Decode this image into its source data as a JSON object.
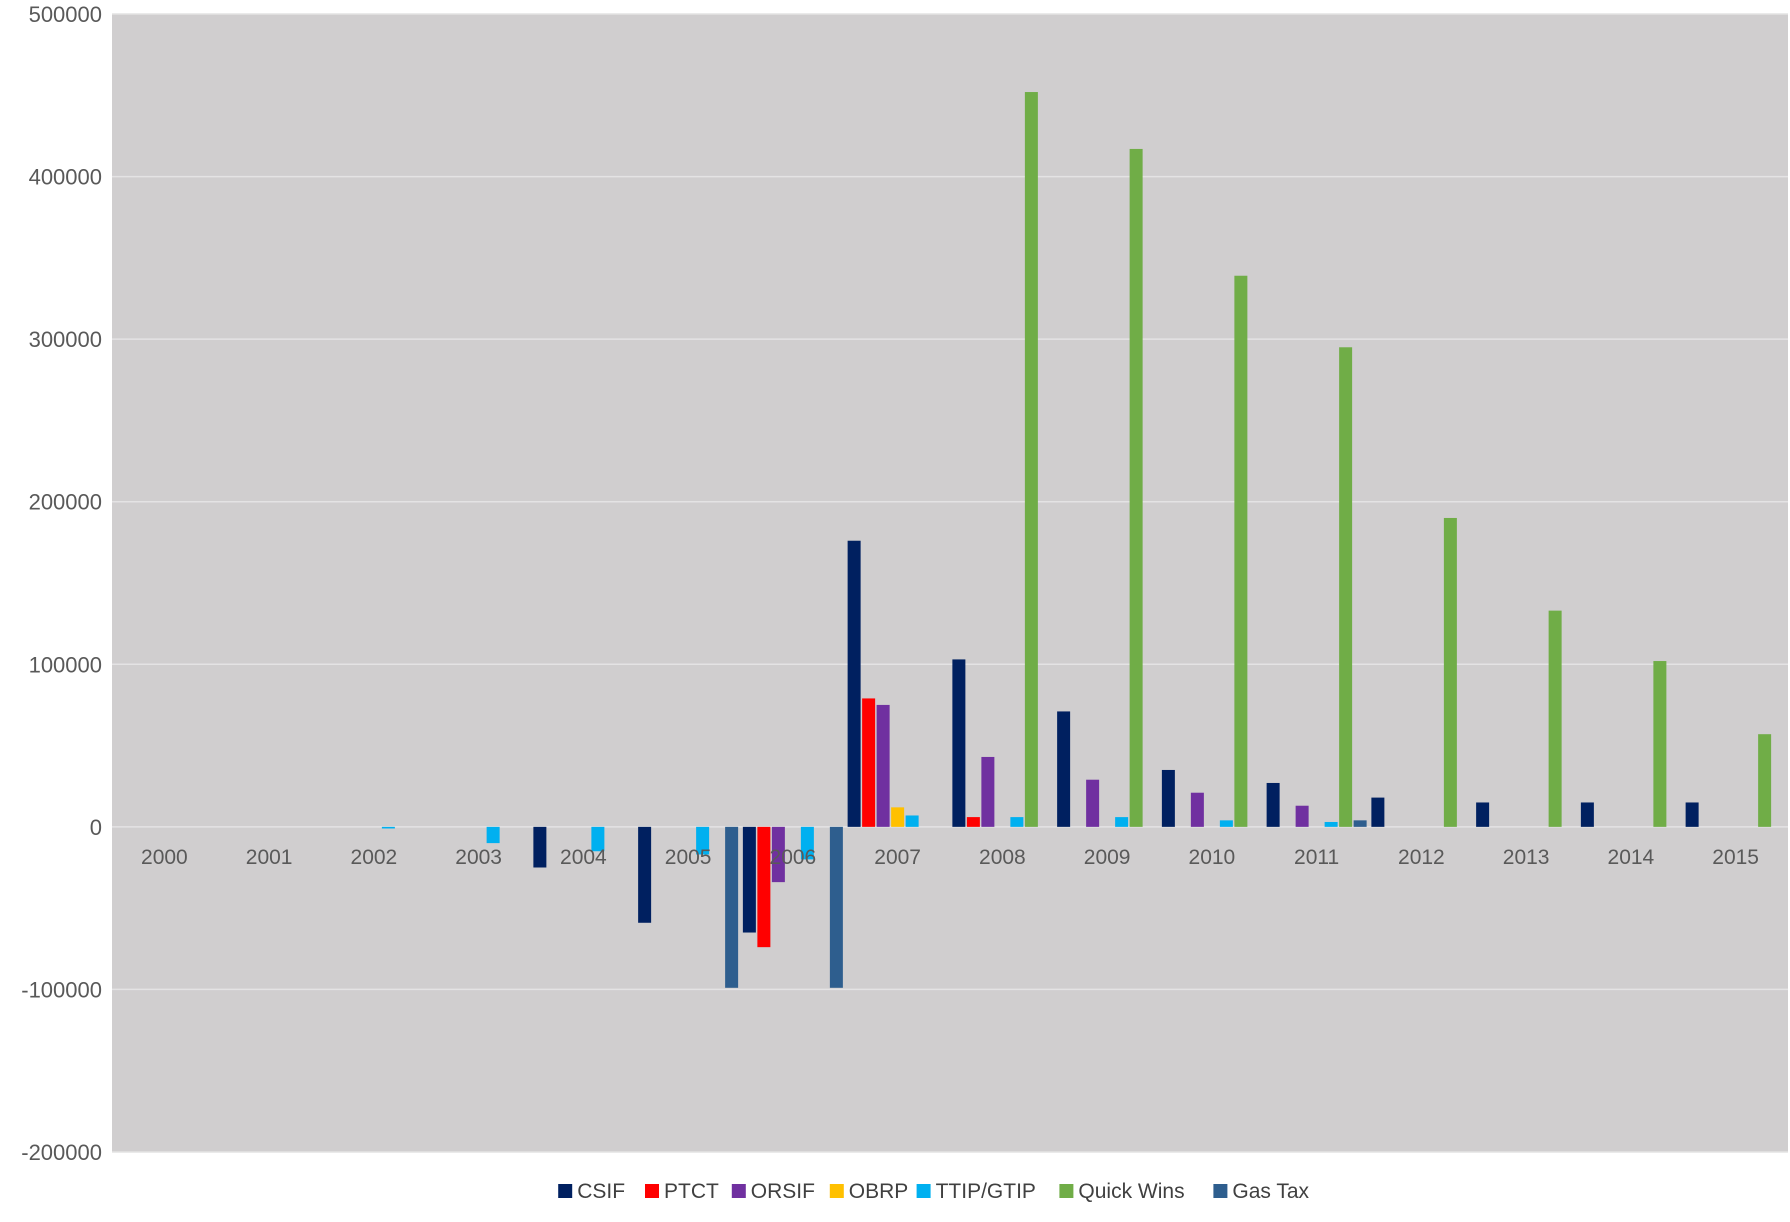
{
  "chart_data": {
    "type": "bar",
    "title": "",
    "xlabel": "",
    "ylabel": "",
    "ylim": [
      -200000,
      500000
    ],
    "yticks": [
      500000,
      400000,
      300000,
      200000,
      100000,
      0,
      -100000,
      -200000
    ],
    "ytick_labels": [
      "500000",
      "400000",
      "300000",
      "200000",
      "100000",
      "0",
      "-100000",
      "-200000"
    ],
    "grid": "horizontal",
    "legend_position": "bottom",
    "categories": [
      "2000",
      "2001",
      "2002",
      "2003",
      "2004",
      "2005",
      "2006",
      "2007",
      "2008",
      "2009",
      "2010",
      "2011",
      "2012",
      "2013",
      "2014",
      "2015"
    ],
    "series": [
      {
        "name": "CSIF",
        "color": "#002060",
        "values": [
          0,
          0,
          0,
          0,
          -25000,
          -59000,
          -65000,
          176000,
          103000,
          71000,
          35000,
          27000,
          18000,
          15000,
          15000,
          15000
        ]
      },
      {
        "name": "PTCT",
        "color": "#FF0000",
        "values": [
          0,
          0,
          0,
          0,
          0,
          0,
          -74000,
          79000,
          6000,
          0,
          0,
          0,
          0,
          0,
          0,
          0
        ]
      },
      {
        "name": "ORSIF",
        "color": "#7030A0",
        "values": [
          0,
          0,
          0,
          0,
          0,
          0,
          -34000,
          75000,
          43000,
          29000,
          21000,
          13000,
          0,
          0,
          0,
          0
        ]
      },
      {
        "name": "OBRP",
        "color": "#FFC000",
        "values": [
          0,
          0,
          0,
          0,
          0,
          0,
          0,
          12000,
          0,
          0,
          0,
          0,
          0,
          0,
          0,
          0
        ]
      },
      {
        "name": "TTIP/GTIP",
        "color": "#00B0F0",
        "values": [
          0,
          0,
          -1000,
          -10000,
          -15000,
          -17000,
          -20000,
          7000,
          6000,
          6000,
          4000,
          3000,
          0,
          0,
          0,
          0
        ]
      },
      {
        "name": "Quick Wins",
        "color": "#70AD47",
        "values": [
          0,
          0,
          0,
          0,
          0,
          0,
          0,
          0,
          452000,
          417000,
          339000,
          295000,
          190000,
          133000,
          102000,
          57000
        ]
      },
      {
        "name": "Gas Tax",
        "color": "#2E5E8E",
        "values": [
          0,
          0,
          0,
          0,
          0,
          -99000,
          -99000,
          0,
          0,
          0,
          0,
          4000,
          0,
          0,
          0,
          0
        ]
      }
    ],
    "plot_background": "#D0CECF",
    "gridline_color": "#E4E3E4"
  }
}
